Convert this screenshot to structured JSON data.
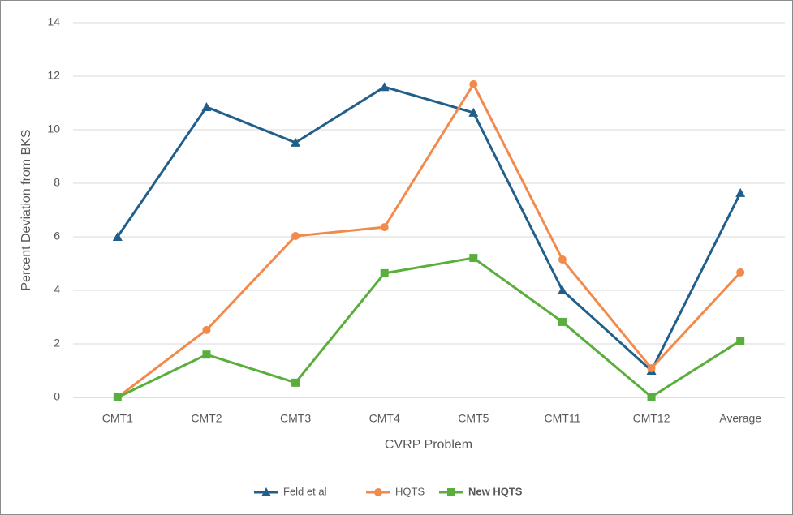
{
  "chart_data": {
    "type": "line",
    "x_label": "CVRP Problem",
    "y_label": "Percent Deviation from BKS",
    "categories": [
      "CMT1",
      "CMT2",
      "CMT3",
      "CMT4",
      "CMT5",
      "CMT11",
      "CMT12",
      "Average"
    ],
    "series": [
      {
        "name": "Feld et al",
        "color": "#215f8a",
        "marker": "triangle",
        "values": [
          6.0,
          10.85,
          9.52,
          11.6,
          10.64,
          4.0,
          1.0,
          7.64
        ]
      },
      {
        "name": "HQTS",
        "color": "#f28a4c",
        "marker": "circle",
        "values": [
          0,
          2.52,
          6.03,
          6.36,
          11.7,
          5.15,
          1.09,
          4.67
        ]
      },
      {
        "name": "New HQTS",
        "color": "#5aae3c",
        "marker": "square",
        "values": [
          0,
          1.6,
          0.55,
          4.64,
          5.21,
          2.82,
          0.02,
          2.12
        ]
      }
    ],
    "ylim": [
      0,
      14
    ],
    "yticks": [
      0,
      2,
      4,
      6,
      8,
      10,
      12,
      14
    ],
    "grid": true,
    "legend": "bottom"
  }
}
